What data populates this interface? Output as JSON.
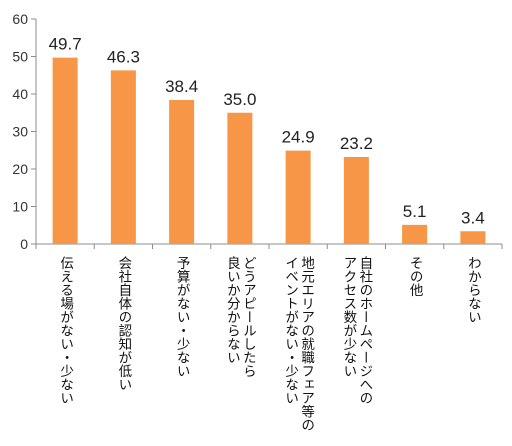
{
  "chart_data": {
    "type": "bar",
    "categories": [
      "伝える場がない・少ない",
      "会社自体の認知が低い",
      "予算がない・少ない",
      "どうアピールしたら良いか分からない",
      "地元エリアの就職フェア等のイベントがない・少ない",
      "自社のホームページへのアクセス数が少ない",
      "その他",
      "わからない"
    ],
    "category_lines": [
      [
        "伝える場がない・少ない"
      ],
      [
        "会社自体の認知が低い"
      ],
      [
        "予算がない・少ない"
      ],
      [
        "どうアピールしたら",
        "良いか分からない"
      ],
      [
        "地元エリアの就職フェア等の",
        "イベントがない・少ない"
      ],
      [
        "自社のホームページへの",
        "アクセス数が少ない"
      ],
      [
        "その他"
      ],
      [
        "わからない"
      ]
    ],
    "values": [
      49.7,
      46.3,
      38.4,
      35.0,
      24.9,
      23.2,
      5.1,
      3.4
    ],
    "value_labels": [
      "49.7",
      "46.3",
      "38.4",
      "35.0",
      "24.9",
      "23.2",
      "5.1",
      "3.4"
    ],
    "yticks": [
      0,
      10,
      20,
      30,
      40,
      50,
      60
    ],
    "ylim": [
      0,
      60
    ],
    "title": "",
    "xlabel": "",
    "ylabel": "",
    "grid": false,
    "bar_color": "#F79646",
    "axis_color": "#8C8C8C"
  }
}
